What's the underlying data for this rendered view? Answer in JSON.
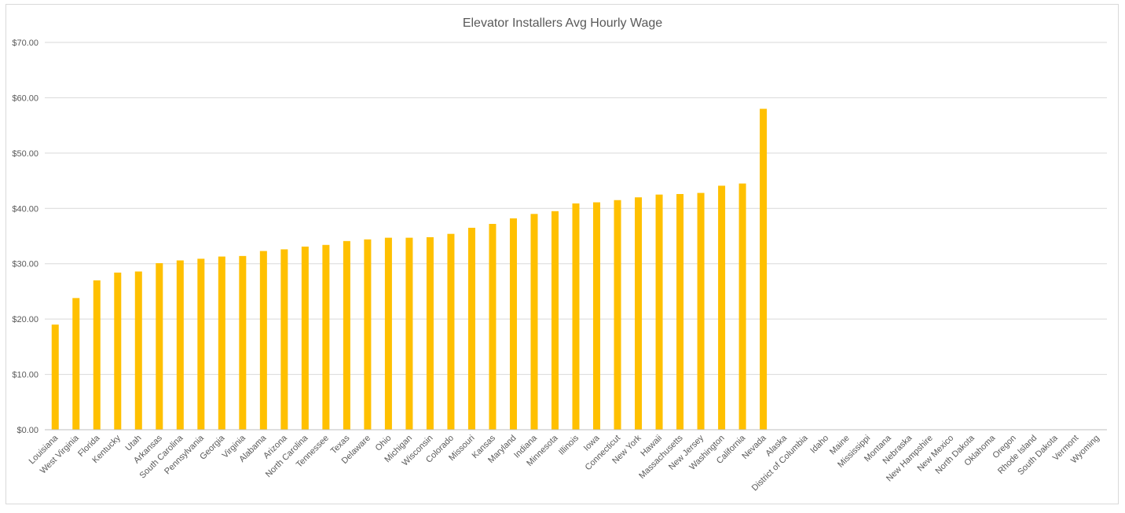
{
  "chart_data": {
    "type": "bar",
    "title": "Elevator Installers Avg Hourly Wage",
    "xlabel": "",
    "ylabel": "",
    "ylim": [
      0,
      70
    ],
    "y_ticks": [
      0,
      10,
      20,
      30,
      40,
      50,
      60,
      70
    ],
    "y_tick_labels": [
      "$0.00",
      "$10.00",
      "$20.00",
      "$30.00",
      "$40.00",
      "$50.00",
      "$60.00",
      "$70.00"
    ],
    "grid": true,
    "legend": "none",
    "bar_color": "#FFC000",
    "categories": [
      "Louisiana",
      "West Virginia",
      "Florida",
      "Kentucky",
      "Utah",
      "Arkansas",
      "South Carolina",
      "Pennsylvania",
      "Georgia",
      "Virginia",
      "Alabama",
      "Arizona",
      "North Carolina",
      "Tennessee",
      "Texas",
      "Delaware",
      "Ohio",
      "Michigan",
      "Wisconsin",
      "Colorado",
      "Missouri",
      "Kansas",
      "Maryland",
      "Indiana",
      "Minnesota",
      "Illinois",
      "Iowa",
      "Connecticut",
      "New York",
      "Hawaii",
      "Massachusetts",
      "New Jersey",
      "Washington",
      "California",
      "Nevada",
      "Alaska",
      "District of Columbia",
      "Idaho",
      "Maine",
      "Mississippi",
      "Montana",
      "Nebraska",
      "New Hampshire",
      "New Mexico",
      "North Dakota",
      "Oklahoma",
      "Oregon",
      "Rhode Island",
      "South Dakota",
      "Vermont",
      "Wyoming"
    ],
    "values": [
      19.0,
      23.8,
      27.0,
      28.4,
      28.6,
      30.1,
      30.6,
      30.9,
      31.3,
      31.4,
      32.3,
      32.6,
      33.1,
      33.4,
      34.1,
      34.4,
      34.7,
      34.7,
      34.8,
      35.4,
      36.5,
      37.2,
      38.2,
      39.0,
      39.5,
      40.9,
      41.1,
      41.5,
      42.0,
      42.5,
      42.6,
      42.8,
      44.1,
      44.5,
      58.0,
      null,
      null,
      null,
      null,
      null,
      null,
      null,
      null,
      null,
      null,
      null,
      null,
      null,
      null,
      null,
      null
    ]
  }
}
